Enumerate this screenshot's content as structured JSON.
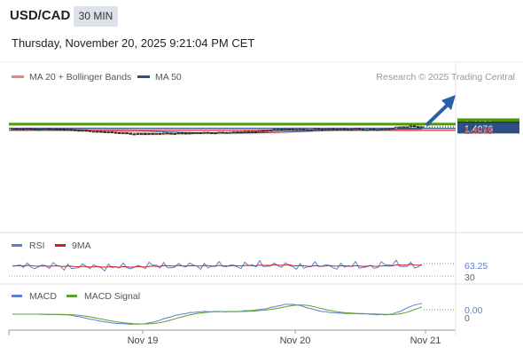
{
  "header": {
    "pair": "USD/CAD",
    "timeframe": "30 MIN",
    "datetime": "Thursday, November 20, 2025 9:21:04 PM CET"
  },
  "legend": {
    "ma20": "MA 20 + Bollinger Bands",
    "ma50": "MA 50",
    "research": "Research © 2025 Trading Central",
    "ma20_color": "#f08080",
    "ma50_color": "#2b4f86"
  },
  "colors": {
    "resistance": "#4c9a0a",
    "support": "#e05050",
    "pivot": "#2b4f86",
    "current": "#333333",
    "arrow": "#2b5ea8",
    "bollinger_fill": "#fde0e0",
    "rsi": "#5b7fd1",
    "rsi_ma": "#cc2222",
    "macd": "#5b7fd1",
    "macd_signal": "#5aa02c"
  },
  "chart_data": [
    {
      "type": "candlestick",
      "title": "USD/CAD",
      "x": [
        "Nov 19",
        "Nov 20",
        "Nov 21"
      ],
      "levels": [
        {
          "label": "1.4131",
          "value": 1.4131,
          "kind": "resistance"
        },
        {
          "label": "1.4120",
          "value": 1.412,
          "kind": "resistance"
        },
        {
          "label": "1.4091",
          "value": 1.4091,
          "kind": "current"
        },
        {
          "label": "1.4076",
          "value": 1.4076,
          "kind": "pivot"
        },
        {
          "label": "1.4057",
          "value": 1.4057,
          "kind": "support"
        },
        {
          "label": "1.4045",
          "value": 1.4045,
          "kind": "support"
        }
      ],
      "forecast": "up",
      "series": [
        {
          "name": "MA 20 + Bollinger Bands"
        },
        {
          "name": "MA 50"
        }
      ],
      "price_path": [
        1.4063,
        1.4064,
        1.4062,
        1.4063,
        1.4062,
        1.4055,
        1.4048,
        1.4038,
        1.403,
        1.4022,
        1.4012,
        1.4003,
        1.4005,
        1.4007,
        1.401,
        1.4011,
        1.4013,
        1.4018,
        1.4017,
        1.402,
        1.4025,
        1.403,
        1.4035,
        1.405,
        1.4062,
        1.4061,
        1.4057,
        1.406,
        1.4063,
        1.4062,
        1.4061,
        1.4062,
        1.406,
        1.4058,
        1.4066,
        1.4091,
        1.4098,
        1.4091
      ]
    },
    {
      "type": "line",
      "title": "",
      "series": [
        {
          "name": "RSI"
        },
        {
          "name": "9MA"
        }
      ],
      "y_labels": [
        "63.25",
        "30"
      ],
      "last_value": 63.25
    },
    {
      "type": "line",
      "title": "",
      "series": [
        {
          "name": "MACD"
        },
        {
          "name": "MACD Signal"
        }
      ],
      "y_labels": [
        "0.00",
        "0"
      ],
      "last_value": 0.0
    }
  ],
  "x_axis": {
    "ticks": [
      "Nov 19",
      "Nov 20",
      "Nov 21"
    ]
  },
  "rsi_legend": {
    "rsi": "RSI",
    "ma": "9MA",
    "value": "63.25",
    "level": "30"
  },
  "macd_legend": {
    "macd": "MACD",
    "signal": "MACD Signal",
    "value": "0.00",
    "zero": "0"
  }
}
